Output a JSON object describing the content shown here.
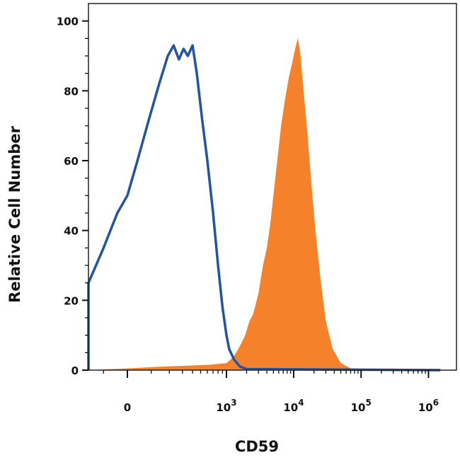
{
  "chart_data": {
    "type": "area",
    "xlabel": "CD59",
    "ylabel": "Relative Cell Number",
    "ylim": [
      0,
      105
    ],
    "xscale": "biexponential",
    "grid": false,
    "legend": "none",
    "y_ticks": [
      {
        "value": 0,
        "label": "0"
      },
      {
        "value": 20,
        "label": "20"
      },
      {
        "value": 40,
        "label": "40"
      },
      {
        "value": 60,
        "label": "60"
      },
      {
        "value": 80,
        "label": "80"
      },
      {
        "value": 100,
        "label": "100"
      }
    ],
    "x_ticks": [
      {
        "value": 0,
        "base": "0",
        "exp": ""
      },
      {
        "value": 1000,
        "base": "10",
        "exp": "3"
      },
      {
        "value": 10000,
        "base": "10",
        "exp": "4"
      },
      {
        "value": 100000,
        "base": "10",
        "exp": "5"
      },
      {
        "value": 1000000,
        "base": "10",
        "exp": "6"
      }
    ],
    "series": [
      {
        "style": "filled",
        "color": "#f5822a",
        "points": [
          [
            -200,
            0
          ],
          [
            0,
            0.5
          ],
          [
            150,
            1
          ],
          [
            600,
            1.5
          ],
          [
            1000,
            2
          ],
          [
            1300,
            4
          ],
          [
            1600,
            7
          ],
          [
            1900,
            10
          ],
          [
            2200,
            14
          ],
          [
            2500,
            16
          ],
          [
            3000,
            22
          ],
          [
            3500,
            30
          ],
          [
            4000,
            35
          ],
          [
            4500,
            42
          ],
          [
            5000,
            50
          ],
          [
            5700,
            60
          ],
          [
            6500,
            70
          ],
          [
            7500,
            78
          ],
          [
            8500,
            84
          ],
          [
            9500,
            88
          ],
          [
            10500,
            92
          ],
          [
            11500,
            95
          ],
          [
            12500,
            91
          ],
          [
            14000,
            80
          ],
          [
            16000,
            68
          ],
          [
            18000,
            55
          ],
          [
            21000,
            40
          ],
          [
            25000,
            26
          ],
          [
            30000,
            14
          ],
          [
            38000,
            6
          ],
          [
            50000,
            2
          ],
          [
            70000,
            0.5
          ],
          [
            100000,
            0
          ],
          [
            1500000,
            0
          ]
        ]
      },
      {
        "style": "outline",
        "color": "#2154a3",
        "points": [
          [
            -1500,
            0
          ],
          [
            -1000,
            1
          ],
          [
            -700,
            4
          ],
          [
            -400,
            12
          ],
          [
            -200,
            25
          ],
          [
            -100,
            35
          ],
          [
            -40,
            45
          ],
          [
            0,
            50
          ],
          [
            40,
            60
          ],
          [
            90,
            72
          ],
          [
            140,
            82
          ],
          [
            190,
            90
          ],
          [
            230,
            93
          ],
          [
            270,
            89
          ],
          [
            310,
            92
          ],
          [
            350,
            90
          ],
          [
            400,
            93
          ],
          [
            450,
            85
          ],
          [
            520,
            72
          ],
          [
            600,
            60
          ],
          [
            700,
            45
          ],
          [
            800,
            30
          ],
          [
            900,
            18
          ],
          [
            1000,
            10
          ],
          [
            1100,
            6
          ],
          [
            1300,
            3
          ],
          [
            1600,
            1
          ],
          [
            2000,
            0.3
          ],
          [
            1500000,
            0
          ]
        ]
      }
    ]
  }
}
